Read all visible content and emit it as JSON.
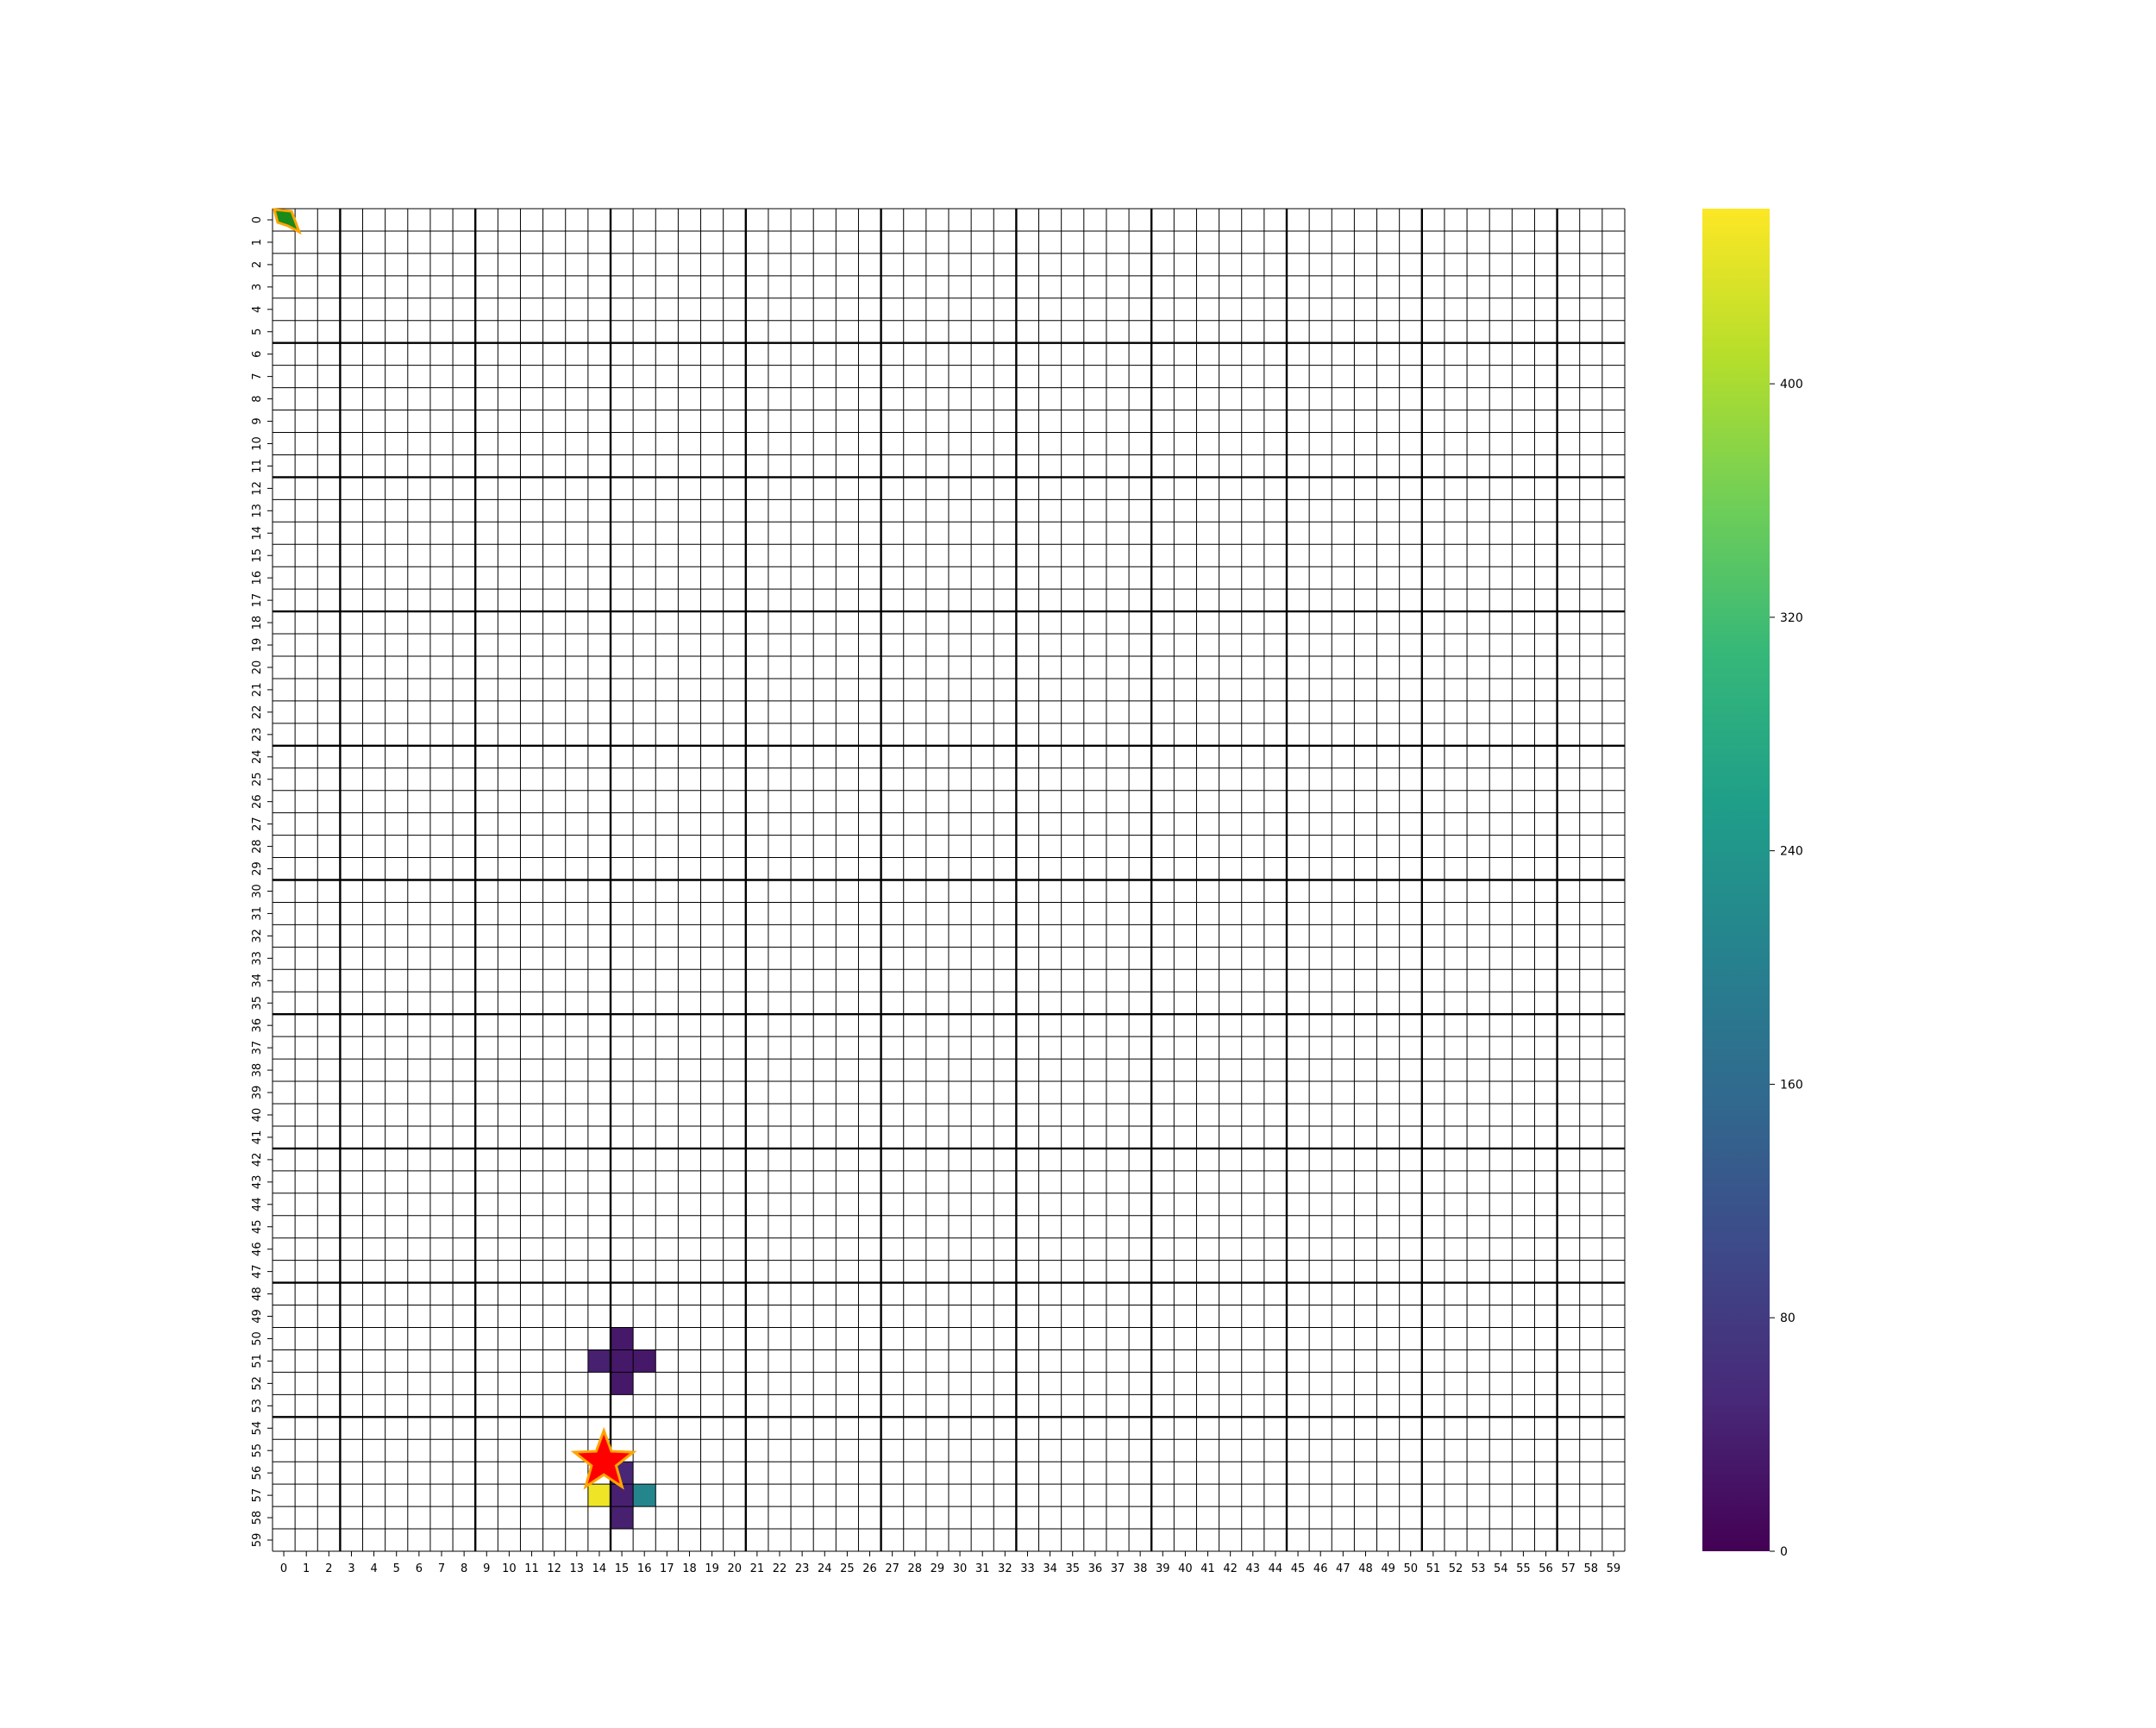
{
  "chart_data": {
    "type": "heatmap",
    "rows": 60,
    "cols": 60,
    "x_tick_labels": [
      "0",
      "1",
      "2",
      "3",
      "4",
      "5",
      "6",
      "7",
      "8",
      "9",
      "10",
      "11",
      "12",
      "13",
      "14",
      "15",
      "16",
      "17",
      "18",
      "19",
      "20",
      "21",
      "22",
      "23",
      "24",
      "25",
      "26",
      "27",
      "28",
      "29",
      "30",
      "31",
      "32",
      "33",
      "34",
      "35",
      "36",
      "37",
      "38",
      "39",
      "40",
      "41",
      "42",
      "43",
      "44",
      "45",
      "46",
      "47",
      "48",
      "49",
      "50",
      "51",
      "52",
      "53",
      "54",
      "55",
      "56",
      "57",
      "58",
      "59"
    ],
    "y_tick_labels": [
      "0",
      "1",
      "2",
      "3",
      "4",
      "5",
      "6",
      "7",
      "8",
      "9",
      "10",
      "11",
      "12",
      "13",
      "14",
      "15",
      "16",
      "17",
      "18",
      "19",
      "20",
      "21",
      "22",
      "23",
      "24",
      "25",
      "26",
      "27",
      "28",
      "29",
      "30",
      "31",
      "32",
      "33",
      "34",
      "35",
      "36",
      "37",
      "38",
      "39",
      "40",
      "41",
      "42",
      "43",
      "44",
      "45",
      "46",
      "47",
      "48",
      "49",
      "50",
      "51",
      "52",
      "53",
      "54",
      "55",
      "56",
      "57",
      "58",
      "59"
    ],
    "colorbar": {
      "colormap": "viridis",
      "range": [
        0,
        460
      ],
      "ticks": [
        0,
        80,
        160,
        240,
        320,
        400
      ],
      "tick_labels": [
        "0",
        "80",
        "160",
        "240",
        "320",
        "400"
      ],
      "stops": [
        "#440154",
        "#482878",
        "#3e4989",
        "#31688e",
        "#26828e",
        "#1f9e89",
        "#35b779",
        "#6ece58",
        "#b5de2b",
        "#fde725"
      ]
    },
    "cells": [
      {
        "row": 50,
        "col": 15,
        "value": 30
      },
      {
        "row": 51,
        "col": 14,
        "value": 40
      },
      {
        "row": 51,
        "col": 15,
        "value": 30
      },
      {
        "row": 51,
        "col": 16,
        "value": 30
      },
      {
        "row": 52,
        "col": 15,
        "value": 30
      },
      {
        "row": 56,
        "col": 15,
        "value": 50
      },
      {
        "row": 57,
        "col": 14,
        "value": 450
      },
      {
        "row": 57,
        "col": 15,
        "value": 40
      },
      {
        "row": 57,
        "col": 16,
        "value": 210
      },
      {
        "row": 58,
        "col": 15,
        "value": 40
      }
    ],
    "markers": [
      {
        "type": "agent-arrow",
        "row": 0,
        "col": 0,
        "color": "#1a8a1a",
        "edge_color": "#ffa500"
      },
      {
        "type": "star",
        "row": 55.5,
        "col": 14.2,
        "color": "#ff0000",
        "edge_color": "#ffa500"
      }
    ],
    "grid": true,
    "major_grid_every": 6
  }
}
